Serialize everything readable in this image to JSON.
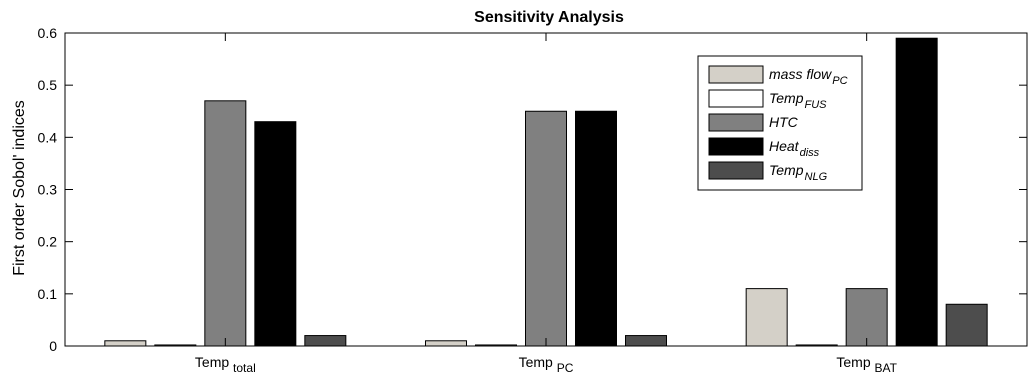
{
  "chart_data": {
    "type": "bar",
    "title": "Sensitivity Analysis",
    "xlabel": "",
    "ylabel": "First order Sobol' indices",
    "ylim": [
      0,
      0.6
    ],
    "yticks": [
      0,
      0.1,
      0.2,
      0.3,
      0.4,
      0.5,
      0.6
    ],
    "ytick_labels": [
      "0",
      "0.1",
      "0.2",
      "0.3",
      "0.4",
      "0.5",
      "0.6"
    ],
    "grid": false,
    "legend_position": "top-right",
    "categories": [
      {
        "base": "Temp",
        "sub": "total"
      },
      {
        "base": "Temp",
        "sub": "PC"
      },
      {
        "base": "Temp",
        "sub": "BAT"
      }
    ],
    "series": [
      {
        "name": "mass flow",
        "name_sub": "PC",
        "color": "#d4d0c8",
        "values": [
          0.01,
          0.01,
          0.11
        ]
      },
      {
        "name": "Temp",
        "name_sub": "FUS",
        "color": "#ffffff",
        "values": [
          0.002,
          0.002,
          0.002
        ]
      },
      {
        "name": "HTC",
        "name_sub": "",
        "color": "#808080",
        "values": [
          0.47,
          0.45,
          0.11
        ]
      },
      {
        "name": "Heat",
        "name_sub": "diss",
        "color": "#000000",
        "values": [
          0.43,
          0.45,
          0.59
        ]
      },
      {
        "name": "Temp",
        "name_sub": "NLG",
        "color": "#4d4d4d",
        "values": [
          0.02,
          0.02,
          0.08
        ]
      }
    ]
  }
}
